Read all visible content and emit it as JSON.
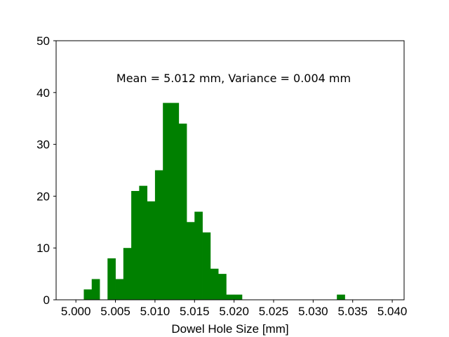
{
  "chart_data": {
    "type": "bar",
    "title": "",
    "xlabel": "Dowel Hole Size [mm]",
    "ylabel": "",
    "annotation": "Mean = 5.012 mm, Variance = 0.004 mm",
    "xlim": [
      4.9975,
      5.0415
    ],
    "ylim": [
      0,
      50
    ],
    "x_ticks": [
      5.0,
      5.005,
      5.01,
      5.015,
      5.02,
      5.025,
      5.03,
      5.035,
      5.04
    ],
    "x_tick_labels": [
      "5.000",
      "5.005",
      "5.010",
      "5.015",
      "5.020",
      "5.025",
      "5.030",
      "5.035",
      "5.040"
    ],
    "y_ticks": [
      0,
      10,
      20,
      30,
      40,
      50
    ],
    "y_tick_labels": [
      "0",
      "10",
      "20",
      "30",
      "40",
      "50"
    ],
    "bin_width": 0.001,
    "bins": [
      {
        "start": 5.001,
        "value": 2
      },
      {
        "start": 5.002,
        "value": 4
      },
      {
        "start": 5.004,
        "value": 8
      },
      {
        "start": 5.005,
        "value": 4
      },
      {
        "start": 5.006,
        "value": 10
      },
      {
        "start": 5.007,
        "value": 21
      },
      {
        "start": 5.008,
        "value": 22
      },
      {
        "start": 5.009,
        "value": 19
      },
      {
        "start": 5.01,
        "value": 25
      },
      {
        "start": 5.011,
        "value": 38
      },
      {
        "start": 5.012,
        "value": 38
      },
      {
        "start": 5.013,
        "value": 34
      },
      {
        "start": 5.014,
        "value": 15
      },
      {
        "start": 5.015,
        "value": 17
      },
      {
        "start": 5.016,
        "value": 13
      },
      {
        "start": 5.017,
        "value": 6
      },
      {
        "start": 5.018,
        "value": 5
      },
      {
        "start": 5.019,
        "value": 1
      },
      {
        "start": 5.02,
        "value": 1
      },
      {
        "start": 5.033,
        "value": 1
      }
    ],
    "bar_color": "#008000",
    "grid": false,
    "legend": "none"
  }
}
